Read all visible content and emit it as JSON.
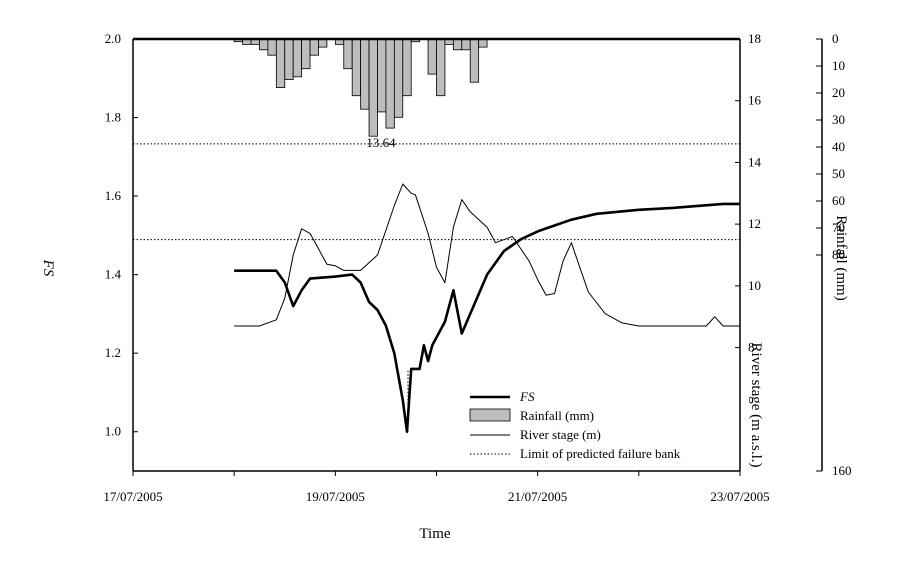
{
  "chart_data": {
    "type": "line",
    "xlabel": "Time",
    "x_ticks": [
      "17/07/2005",
      "19/07/2005",
      "21/07/2005",
      "23/07/2005"
    ],
    "xlim": [
      "2005-07-17T00:00",
      "2005-07-23T00:00"
    ],
    "y_left": {
      "label": "FS",
      "ylim": [
        0.9,
        2.0
      ],
      "ticks": [
        "1.0",
        "1.2",
        "1.4",
        "1.6",
        "1.8",
        "2.0"
      ]
    },
    "y_right_stage": {
      "label": "River stage (m a.s.l.)",
      "ylim": [
        4,
        18
      ],
      "ticks": [
        "8",
        "10",
        "12",
        "14",
        "16",
        "18"
      ]
    },
    "y_right_rain": {
      "label": "Rainfall (mm)",
      "ylim": [
        0,
        160
      ],
      "reversed": true,
      "ticks": [
        "0",
        "10",
        "20",
        "30",
        "40",
        "50",
        "60",
        "70",
        "80",
        "160"
      ]
    },
    "annotation": "13.64",
    "legend": {
      "placement": "bottom-right",
      "items": [
        {
          "label": "FS",
          "style": "thick-line",
          "italic": true
        },
        {
          "label": "Rainfall (mm)",
          "style": "bar"
        },
        {
          "label": "River stage (m)",
          "style": "thin-line"
        },
        {
          "label": "Limit of predicted failure bank",
          "style": "dotted-line"
        }
      ]
    },
    "reference_lines": [
      {
        "axis": "stage",
        "value": 14.6
      },
      {
        "axis": "stage",
        "value": 11.5
      }
    ],
    "series": [
      {
        "axis": "stage",
        "points": [
          [
            "2005-07-18T00:00",
            8.7
          ],
          [
            "2005-07-18T06:00",
            8.7
          ],
          [
            "2005-07-18T10:00",
            8.9
          ],
          [
            "2005-07-18T12:00",
            9.6
          ],
          [
            "2005-07-18T14:00",
            11.0
          ],
          [
            "2005-07-18T16:00",
            11.85
          ],
          [
            "2005-07-18T18:00",
            11.7
          ],
          [
            "2005-07-18T20:00",
            11.2
          ],
          [
            "2005-07-18T22:00",
            10.7
          ],
          [
            "2005-07-19T00:00",
            10.65
          ],
          [
            "2005-07-19T02:00",
            10.5
          ],
          [
            "2005-07-19T06:00",
            10.5
          ],
          [
            "2005-07-19T10:00",
            11.0
          ],
          [
            "2005-07-19T14:00",
            12.6
          ],
          [
            "2005-07-19T16:00",
            13.3
          ],
          [
            "2005-07-19T18:00",
            13.0
          ],
          [
            "2005-07-19T19:00",
            12.95
          ],
          [
            "2005-07-19T22:00",
            11.7
          ],
          [
            "2005-07-20T00:00",
            10.6
          ],
          [
            "2005-07-20T02:00",
            10.1
          ],
          [
            "2005-07-20T04:00",
            11.9
          ],
          [
            "2005-07-20T06:00",
            12.8
          ],
          [
            "2005-07-20T08:00",
            12.4
          ],
          [
            "2005-07-20T12:00",
            11.9
          ],
          [
            "2005-07-20T14:00",
            11.4
          ],
          [
            "2005-07-20T18:00",
            11.6
          ],
          [
            "2005-07-20T22:00",
            10.8
          ],
          [
            "2005-07-21T00:00",
            10.2
          ],
          [
            "2005-07-21T02:00",
            9.7
          ],
          [
            "2005-07-21T04:00",
            9.75
          ],
          [
            "2005-07-21T06:00",
            10.8
          ],
          [
            "2005-07-21T08:00",
            11.4
          ],
          [
            "2005-07-21T10:00",
            10.6
          ],
          [
            "2005-07-21T12:00",
            9.8
          ],
          [
            "2005-07-21T16:00",
            9.1
          ],
          [
            "2005-07-21T20:00",
            8.8
          ],
          [
            "2005-07-22T00:00",
            8.7
          ],
          [
            "2005-07-22T12:00",
            8.7
          ],
          [
            "2005-07-22T16:00",
            8.7
          ],
          [
            "2005-07-22T18:00",
            9.0
          ],
          [
            "2005-07-22T20:00",
            8.7
          ],
          [
            "2005-07-23T00:00",
            8.7
          ]
        ]
      },
      {
        "name": "FS",
        "axis": "fs",
        "points": [
          [
            "2005-07-18T00:00",
            1.41
          ],
          [
            "2005-07-18T10:00",
            1.41
          ],
          [
            "2005-07-18T12:00",
            1.38
          ],
          [
            "2005-07-18T14:00",
            1.32
          ],
          [
            "2005-07-18T16:00",
            1.36
          ],
          [
            "2005-07-18T18:00",
            1.39
          ],
          [
            "2005-07-19T00:00",
            1.395
          ],
          [
            "2005-07-19T04:00",
            1.4
          ],
          [
            "2005-07-19T06:00",
            1.38
          ],
          [
            "2005-07-19T08:00",
            1.33
          ],
          [
            "2005-07-19T10:00",
            1.31
          ],
          [
            "2005-07-19T12:00",
            1.27
          ],
          [
            "2005-07-19T14:00",
            1.2
          ],
          [
            "2005-07-19T16:00",
            1.08
          ],
          [
            "2005-07-19T17:00",
            1.0
          ],
          [
            "2005-07-19T18:00",
            1.16
          ],
          [
            "2005-07-19T20:00",
            1.16
          ],
          [
            "2005-07-19T21:00",
            1.22
          ],
          [
            "2005-07-19T22:00",
            1.18
          ],
          [
            "2005-07-19T23:00",
            1.22
          ],
          [
            "2005-07-20T02:00",
            1.28
          ],
          [
            "2005-07-20T04:00",
            1.36
          ],
          [
            "2005-07-20T06:00",
            1.25
          ],
          [
            "2005-07-20T08:00",
            1.3
          ],
          [
            "2005-07-20T12:00",
            1.4
          ],
          [
            "2005-07-20T16:00",
            1.46
          ],
          [
            "2005-07-20T20:00",
            1.49
          ],
          [
            "2005-07-21T00:00",
            1.51
          ],
          [
            "2005-07-21T04:00",
            1.525
          ],
          [
            "2005-07-21T08:00",
            1.54
          ],
          [
            "2005-07-21T14:00",
            1.555
          ],
          [
            "2005-07-22T00:00",
            1.565
          ],
          [
            "2005-07-22T08:00",
            1.57
          ],
          [
            "2005-07-22T14:00",
            1.575
          ],
          [
            "2005-07-22T20:00",
            1.58
          ],
          [
            "2005-07-23T00:00",
            1.58
          ]
        ]
      }
    ],
    "rainfall_mm": [
      [
        "2005-07-18T00:00",
        1
      ],
      [
        "2005-07-18T02:00",
        2
      ],
      [
        "2005-07-18T04:00",
        2
      ],
      [
        "2005-07-18T06:00",
        4
      ],
      [
        "2005-07-18T08:00",
        6
      ],
      [
        "2005-07-18T10:00",
        18
      ],
      [
        "2005-07-18T12:00",
        15
      ],
      [
        "2005-07-18T14:00",
        14
      ],
      [
        "2005-07-18T16:00",
        11
      ],
      [
        "2005-07-18T18:00",
        6
      ],
      [
        "2005-07-18T20:00",
        3
      ],
      [
        "2005-07-19T00:00",
        2
      ],
      [
        "2005-07-19T02:00",
        11
      ],
      [
        "2005-07-19T04:00",
        21
      ],
      [
        "2005-07-19T06:00",
        26
      ],
      [
        "2005-07-19T08:00",
        36
      ],
      [
        "2005-07-19T10:00",
        27
      ],
      [
        "2005-07-19T12:00",
        33
      ],
      [
        "2005-07-19T14:00",
        29
      ],
      [
        "2005-07-19T16:00",
        21
      ],
      [
        "2005-07-19T18:00",
        1
      ],
      [
        "2005-07-19T22:00",
        13
      ],
      [
        "2005-07-20T00:00",
        21
      ],
      [
        "2005-07-20T02:00",
        2
      ],
      [
        "2005-07-20T04:00",
        4
      ],
      [
        "2005-07-20T06:00",
        4
      ],
      [
        "2005-07-20T08:00",
        16
      ],
      [
        "2005-07-20T10:00",
        3
      ]
    ]
  }
}
